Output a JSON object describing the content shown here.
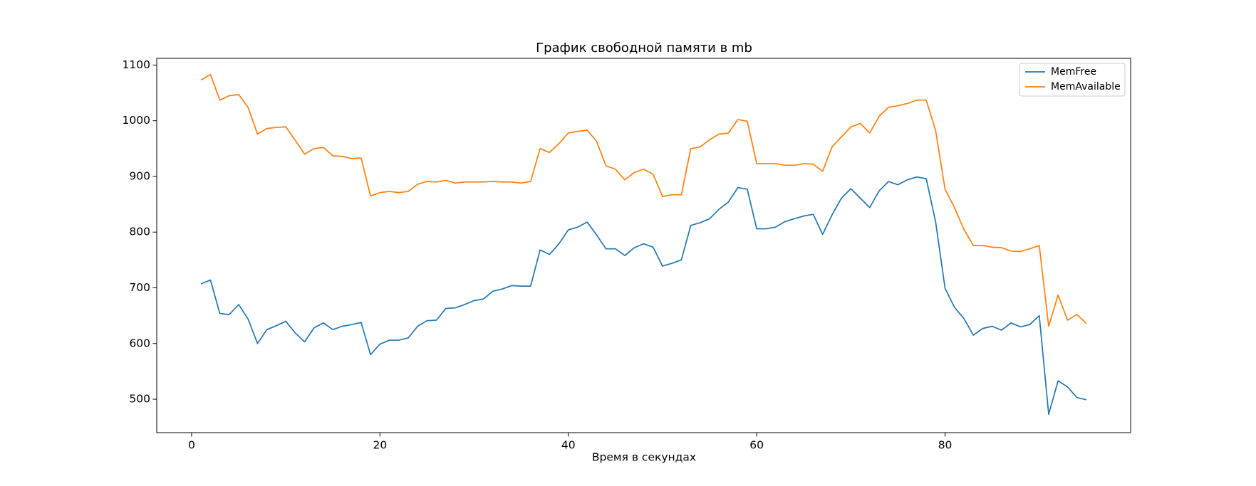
{
  "chart_data": {
    "type": "line",
    "title": "График свободной памяти в mb",
    "x_label": "Время в секундах",
    "x": [
      1,
      2,
      3,
      4,
      5,
      6,
      7,
      8,
      9,
      10,
      11,
      12,
      13,
      14,
      15,
      16,
      17,
      18,
      19,
      20,
      21,
      22,
      23,
      24,
      25,
      26,
      27,
      28,
      29,
      30,
      31,
      32,
      33,
      34,
      35,
      36,
      37,
      38,
      39,
      40,
      41,
      42,
      43,
      44,
      45,
      46,
      47,
      48,
      49,
      50,
      51,
      52,
      53,
      54,
      55,
      56,
      57,
      58,
      59,
      60,
      61,
      62,
      63,
      64,
      65,
      66,
      67,
      68,
      69,
      70,
      71,
      72,
      73,
      74,
      75,
      76,
      77,
      78,
      79,
      80,
      81,
      82,
      83,
      84,
      85,
      86,
      87,
      88,
      89,
      90,
      91,
      92,
      93,
      94,
      95
    ],
    "series": [
      {
        "name": "MemFree",
        "color": "#1f77b4",
        "values": [
          707,
          714,
          654,
          652,
          670,
          644,
          600,
          625,
          632,
          640,
          619,
          603,
          628,
          637,
          625,
          631,
          634,
          638,
          580,
          599,
          606,
          606,
          610,
          631,
          641,
          642,
          663,
          664,
          670,
          677,
          680,
          694,
          698,
          704,
          703,
          703,
          768,
          760,
          779,
          804,
          809,
          818,
          795,
          770,
          770,
          758,
          772,
          779,
          773,
          739,
          744,
          750,
          812,
          817,
          824,
          841,
          854,
          880,
          877,
          806,
          806,
          809,
          819,
          824,
          829,
          832,
          796,
          831,
          861,
          878,
          861,
          844,
          874,
          891,
          885,
          894,
          899,
          896,
          818,
          699,
          665,
          645,
          615,
          627,
          631,
          624,
          637,
          630,
          634,
          650,
          473,
          533,
          522,
          503,
          499
        ]
      },
      {
        "name": "MemAvailable",
        "color": "#ff7f0e",
        "values": [
          1073,
          1083,
          1037,
          1045,
          1047,
          1024,
          976,
          986,
          988,
          989,
          965,
          940,
          950,
          952,
          937,
          936,
          932,
          933,
          865,
          871,
          873,
          871,
          873,
          886,
          891,
          890,
          893,
          888,
          890,
          890,
          890,
          891,
          890,
          890,
          888,
          891,
          950,
          943,
          959,
          978,
          981,
          983,
          963,
          919,
          913,
          894,
          907,
          913,
          904,
          864,
          867,
          867,
          950,
          953,
          966,
          976,
          978,
          1002,
          999,
          923,
          923,
          923,
          920,
          920,
          923,
          922,
          909,
          953,
          971,
          989,
          995,
          978,
          1008,
          1024,
          1027,
          1031,
          1037,
          1037,
          982,
          877,
          844,
          805,
          776,
          776,
          773,
          772,
          766,
          765,
          770,
          776,
          631,
          687,
          642,
          652,
          636
        ]
      }
    ],
    "xlim": [
      -3.7,
      99.7
    ],
    "xticks": [
      0,
      20,
      40,
      60,
      80
    ],
    "ylim": [
      440,
      1112
    ],
    "yticks": [
      500,
      600,
      700,
      800,
      900,
      1000,
      1100
    ],
    "grid": false,
    "legend": "upper right"
  }
}
